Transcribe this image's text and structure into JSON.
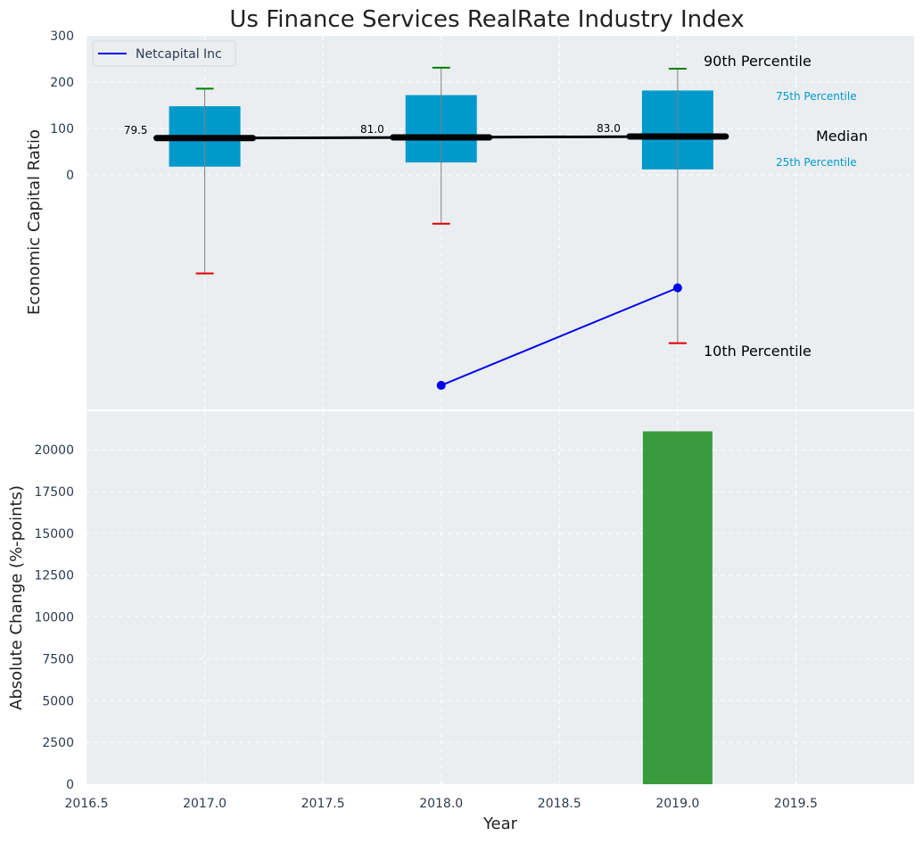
{
  "chart_data": {
    "title": "Us Finance Services RealRate Industry Index",
    "xlabel": "Year",
    "xlim": [
      2016.5,
      2020.0
    ],
    "x_ticks": [
      "2016.5",
      "2017.0",
      "2017.5",
      "2018.0",
      "2018.5",
      "2019.0",
      "2019.5"
    ],
    "x_tick_values": [
      2016.5,
      2017.0,
      2017.5,
      2018.0,
      2018.5,
      2019.0,
      2019.5
    ],
    "top": {
      "type": "box",
      "ylabel": "Economic Capital Ratio",
      "ylim": [
        -505,
        300
      ],
      "y_ticks": [
        "0",
        "100",
        "200",
        "300"
      ],
      "y_tick_values": [
        0,
        100,
        200,
        300
      ],
      "boxes": [
        {
          "year": 2017,
          "p10": -212,
          "p25": 18,
          "median": 79.5,
          "p75": 148,
          "p90": 186,
          "median_label": "79.5"
        },
        {
          "year": 2018,
          "p10": -105,
          "p25": 27,
          "median": 81.0,
          "p75": 172,
          "p90": 231,
          "median_label": "81.0"
        },
        {
          "year": 2019,
          "p10": -362,
          "p25": 12,
          "median": 83.0,
          "p75": 182,
          "p90": 229,
          "median_label": "83.0"
        }
      ],
      "series": [
        {
          "name": "Netcapital Inc",
          "color": "#0000ee",
          "x": [
            2018,
            2019
          ],
          "y": [
            -453,
            -243
          ]
        }
      ],
      "legend": {
        "position": "top-left",
        "label": "Netcapital Inc"
      },
      "annotations": {
        "p90": "90th Percentile",
        "p75": "75th Percentile",
        "median": "Median",
        "p25": "25th Percentile",
        "p10": "10th Percentile"
      },
      "colors": {
        "box": "#0099cc",
        "median": "#000000",
        "p90_cap": "#008000",
        "p10_cap": "#dd0000",
        "whisker": "#808080",
        "panel_bg": "#eaeef1"
      }
    },
    "bottom": {
      "type": "bar",
      "ylabel": "Absolute Change (%-points)",
      "ylim": [
        0,
        22300
      ],
      "y_ticks": [
        "0",
        "2500",
        "5000",
        "7500",
        "10000",
        "12500",
        "15000",
        "17500",
        "20000"
      ],
      "y_tick_values": [
        0,
        2500,
        5000,
        7500,
        10000,
        12500,
        15000,
        17500,
        20000
      ],
      "x": [
        2019
      ],
      "values": [
        21100
      ],
      "colors": {
        "bar": "#3a9b3e"
      }
    }
  }
}
